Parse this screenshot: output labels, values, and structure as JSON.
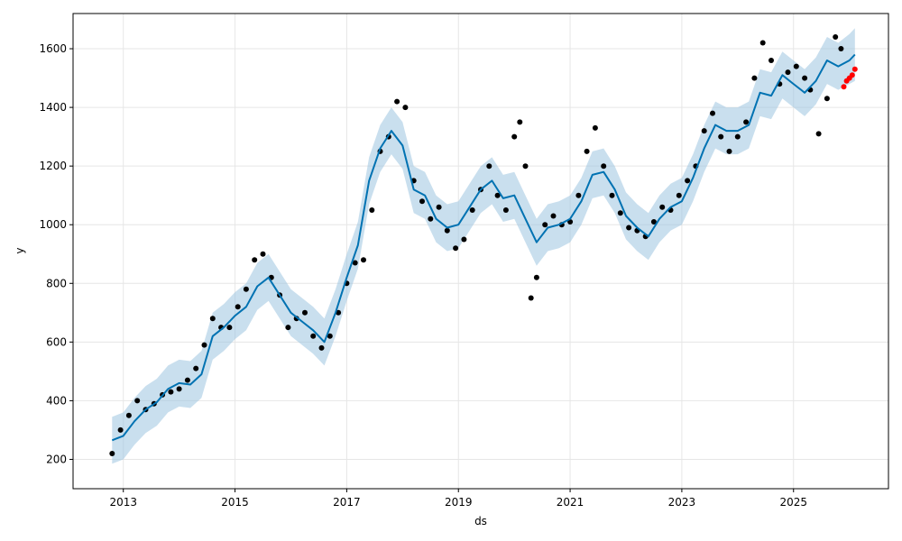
{
  "chart_data": {
    "type": "line",
    "xlabel": "ds",
    "ylabel": "y",
    "xlim": [
      2012.1,
      2026.7
    ],
    "ylim": [
      100,
      1720
    ],
    "x_ticks": [
      2013,
      2015,
      2017,
      2019,
      2021,
      2023,
      2025
    ],
    "x_tick_labels": [
      "2013",
      "2015",
      "2017",
      "2019",
      "2021",
      "2023",
      "2025"
    ],
    "y_ticks": [
      200,
      400,
      600,
      800,
      1000,
      1200,
      1400,
      1600
    ],
    "y_tick_labels": [
      "200",
      "400",
      "600",
      "800",
      "1000",
      "1200",
      "1400",
      "1600"
    ],
    "grid": true,
    "colors": {
      "forecast": "#0072B2",
      "interval": "#9cc4e0",
      "observed": "#000000",
      "recent": "#ff0000"
    },
    "series": [
      {
        "kind": "forecast",
        "x": [
          2012.8,
          2013.0,
          2013.2,
          2013.4,
          2013.6,
          2013.8,
          2014.0,
          2014.2,
          2014.4,
          2014.6,
          2014.8,
          2015.0,
          2015.2,
          2015.4,
          2015.6,
          2015.8,
          2016.0,
          2016.2,
          2016.4,
          2016.6,
          2016.8,
          2017.0,
          2017.2,
          2017.4,
          2017.6,
          2017.8,
          2018.0,
          2018.2,
          2018.4,
          2018.6,
          2018.8,
          2019.0,
          2019.2,
          2019.4,
          2019.6,
          2019.8,
          2020.0,
          2020.2,
          2020.4,
          2020.6,
          2020.8,
          2021.0,
          2021.2,
          2021.4,
          2021.6,
          2021.8,
          2022.0,
          2022.2,
          2022.4,
          2022.6,
          2022.8,
          2023.0,
          2023.2,
          2023.4,
          2023.6,
          2023.8,
          2024.0,
          2024.2,
          2024.4,
          2024.6,
          2024.8,
          2025.0,
          2025.2,
          2025.4,
          2025.6,
          2025.8,
          2026.0,
          2026.1
        ],
        "yhat": [
          265,
          280,
          330,
          370,
          395,
          440,
          460,
          455,
          490,
          620,
          650,
          690,
          720,
          790,
          820,
          760,
          700,
          670,
          640,
          600,
          700,
          820,
          930,
          1150,
          1260,
          1320,
          1270,
          1120,
          1100,
          1020,
          990,
          1000,
          1060,
          1120,
          1150,
          1090,
          1100,
          1020,
          940,
          990,
          1000,
          1020,
          1080,
          1170,
          1180,
          1120,
          1030,
          990,
          960,
          1020,
          1060,
          1080,
          1160,
          1260,
          1340,
          1320,
          1320,
          1340,
          1450,
          1440,
          1510,
          1480,
          1450,
          1490,
          1560,
          1540,
          1560,
          1580
        ],
        "lower": [
          185,
          200,
          250,
          290,
          315,
          360,
          380,
          375,
          410,
          540,
          570,
          610,
          640,
          710,
          740,
          680,
          620,
          590,
          560,
          520,
          620,
          740,
          850,
          1070,
          1180,
          1240,
          1190,
          1040,
          1020,
          940,
          910,
          920,
          980,
          1040,
          1070,
          1010,
          1020,
          940,
          860,
          910,
          920,
          940,
          1000,
          1090,
          1100,
          1040,
          950,
          910,
          880,
          940,
          980,
          1000,
          1080,
          1180,
          1260,
          1240,
          1240,
          1260,
          1370,
          1360,
          1430,
          1400,
          1370,
          1410,
          1480,
          1460,
          1480,
          1490
        ],
        "upper": [
          345,
          360,
          410,
          450,
          475,
          520,
          540,
          535,
          570,
          700,
          730,
          770,
          800,
          870,
          900,
          840,
          780,
          750,
          720,
          680,
          780,
          900,
          1010,
          1230,
          1340,
          1400,
          1350,
          1200,
          1180,
          1100,
          1070,
          1080,
          1140,
          1200,
          1230,
          1170,
          1180,
          1100,
          1020,
          1070,
          1080,
          1100,
          1160,
          1250,
          1260,
          1200,
          1110,
          1070,
          1040,
          1100,
          1140,
          1160,
          1240,
          1340,
          1420,
          1400,
          1400,
          1420,
          1530,
          1520,
          1590,
          1560,
          1530,
          1570,
          1640,
          1620,
          1650,
          1670
        ]
      },
      {
        "kind": "observed",
        "x": [
          2012.8,
          2012.95,
          2013.1,
          2013.25,
          2013.4,
          2013.55,
          2013.7,
          2013.85,
          2014.0,
          2014.15,
          2014.3,
          2014.45,
          2014.6,
          2014.75,
          2014.9,
          2015.05,
          2015.2,
          2015.35,
          2015.5,
          2015.65,
          2015.8,
          2015.95,
          2016.1,
          2016.25,
          2016.4,
          2016.55,
          2016.7,
          2016.85,
          2017.0,
          2017.15,
          2017.3,
          2017.45,
          2017.6,
          2017.75,
          2017.9,
          2018.05,
          2018.2,
          2018.35,
          2018.5,
          2018.65,
          2018.8,
          2018.95,
          2019.1,
          2019.25,
          2019.4,
          2019.55,
          2019.7,
          2019.85,
          2020.0,
          2020.1,
          2020.2,
          2020.3,
          2020.4,
          2020.55,
          2020.7,
          2020.85,
          2021.0,
          2021.15,
          2021.3,
          2021.45,
          2021.6,
          2021.75,
          2021.9,
          2022.05,
          2022.2,
          2022.35,
          2022.5,
          2022.65,
          2022.8,
          2022.95,
          2023.1,
          2023.25,
          2023.4,
          2023.55,
          2023.7,
          2023.85,
          2024.0,
          2024.15,
          2024.3,
          2024.45,
          2024.6,
          2024.75,
          2024.9,
          2025.05,
          2025.2,
          2025.3,
          2025.45,
          2025.6,
          2025.75,
          2025.85
        ],
        "y": [
          220,
          300,
          350,
          400,
          370,
          390,
          420,
          430,
          440,
          470,
          510,
          590,
          680,
          650,
          650,
          720,
          780,
          880,
          900,
          820,
          760,
          650,
          680,
          700,
          620,
          580,
          620,
          700,
          800,
          870,
          880,
          1050,
          1250,
          1300,
          1420,
          1400,
          1150,
          1080,
          1020,
          1060,
          980,
          920,
          950,
          1050,
          1120,
          1200,
          1100,
          1050,
          1300,
          1350,
          1200,
          750,
          820,
          1000,
          1030,
          1000,
          1010,
          1100,
          1250,
          1330,
          1200,
          1100,
          1040,
          990,
          980,
          960,
          1010,
          1060,
          1050,
          1100,
          1150,
          1200,
          1320,
          1380,
          1300,
          1250,
          1300,
          1350,
          1500,
          1620,
          1560,
          1480,
          1520,
          1540,
          1500,
          1460,
          1310,
          1430,
          1640,
          1600
        ]
      },
      {
        "kind": "recent",
        "x": [
          2025.9,
          2025.95,
          2026.0,
          2026.05,
          2026.1
        ],
        "y": [
          1470,
          1490,
          1500,
          1510,
          1530
        ]
      }
    ]
  }
}
